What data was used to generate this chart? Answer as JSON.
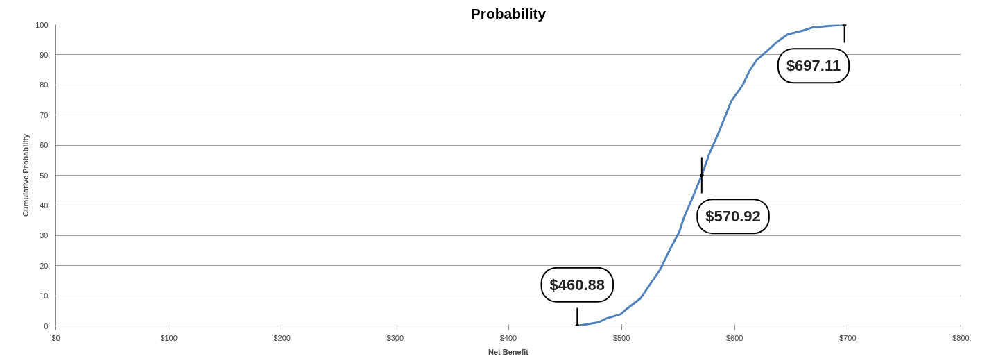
{
  "chart_data": {
    "type": "line",
    "title": "Probability",
    "xlabel": "Net Benefit",
    "ylabel": "Cumulative Probability",
    "x": [
      460.8,
      480.1,
      486.2,
      499.4,
      504.5,
      516.7,
      534,
      543.1,
      551.2,
      555.3,
      563.4,
      571,
      577.6,
      585.8,
      591.9,
      597,
      607.1,
      613.2,
      619.3,
      628.5,
      637.6,
      646.7,
      661,
      669.1,
      697.1
    ],
    "series": [
      {
        "color": "#4f81bd",
        "values": [
          0,
          1.2,
          2.4,
          3.9,
          5.6,
          9.1,
          18.6,
          25.6,
          31.3,
          36.1,
          43.1,
          50.1,
          57.1,
          64.1,
          69.8,
          74.6,
          79.9,
          84.7,
          88.2,
          91.2,
          94.3,
          96.7,
          98.1,
          99.1,
          100
        ]
      },
      {
        "type": "scatter",
        "color": "#000000",
        "x": [
          460.88,
          570.92,
          697.11
        ],
        "values": [
          0,
          50,
          100
        ],
        "errors": [
          6,
          6,
          6
        ]
      }
    ],
    "xlim": [
      0,
      800
    ],
    "xticks": [
      {
        "value": 0,
        "label": "$0"
      },
      {
        "value": 100,
        "label": "$100"
      },
      {
        "value": 200,
        "label": "$200"
      },
      {
        "value": 300,
        "label": "$300"
      },
      {
        "value": 400,
        "label": "$400"
      },
      {
        "value": 500,
        "label": "$500"
      },
      {
        "value": 600,
        "label": "$600"
      },
      {
        "value": 700,
        "label": "$700"
      },
      {
        "value": 800,
        "label": "$800"
      }
    ],
    "ylim": [
      0,
      100
    ],
    "yticks": [
      0,
      10,
      20,
      30,
      40,
      50,
      60,
      70,
      80,
      90,
      100
    ],
    "grid": "y",
    "marker": "none",
    "line_style": "solid",
    "annotations": [
      {
        "text": "$460.88",
        "x": 460.88,
        "y": 0
      },
      {
        "text": "$570.92",
        "x": 570.92,
        "y": 50
      },
      {
        "text": "$697.11",
        "x": 697.11,
        "y": 100
      }
    ]
  }
}
